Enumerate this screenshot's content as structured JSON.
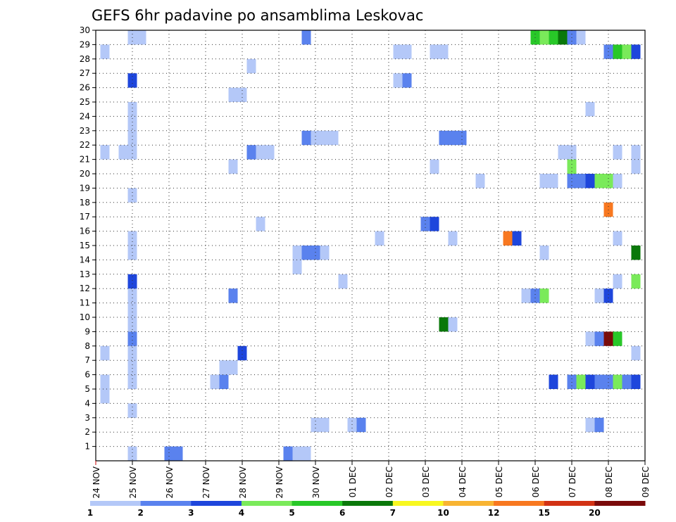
{
  "chart_data": {
    "type": "heatmap",
    "title": "GEFS 6hr padavine po ansamblima Leskovac",
    "xlabel": "",
    "ylabel": "",
    "x_tick_labels": [
      "24 NOV",
      "25 NOV",
      "26 NOV",
      "27 NOV",
      "28 NOV",
      "29 NOV",
      "30 NOV",
      "01 DEC",
      "02 DEC",
      "03 DEC",
      "04 DEC",
      "05 DEC",
      "06 DEC",
      "07 DEC",
      "08 DEC",
      "09 DEC"
    ],
    "x_range_days": [
      0,
      15
    ],
    "y_tick_labels": [
      "1",
      "2",
      "3",
      "4",
      "5",
      "6",
      "7",
      "8",
      "9",
      "10",
      "11",
      "12",
      "13",
      "14",
      "15",
      "16",
      "17",
      "18",
      "19",
      "20",
      "21",
      "22",
      "23",
      "24",
      "25",
      "26",
      "27",
      "28",
      "29",
      "30"
    ],
    "y_range": [
      0,
      30
    ],
    "grid": true,
    "colorbar": {
      "placement": "bottom",
      "labels": [
        "1",
        "2",
        "3",
        "4",
        "5",
        "6",
        "7",
        "10",
        "12",
        "15",
        "20"
      ],
      "colors": [
        "#b4c8f8",
        "#5a82ee",
        "#1e46dc",
        "#7aea5a",
        "#28c828",
        "#0a780a",
        "#f8f820",
        "#f8b432",
        "#f87820",
        "#d23214",
        "#7a0a0a"
      ]
    },
    "cells": [
      {
        "m": 1,
        "t": 4,
        "c": 1
      },
      {
        "m": 1,
        "t": 8,
        "c": 2
      },
      {
        "m": 1,
        "t": 9,
        "c": 2
      },
      {
        "m": 1,
        "t": 21,
        "c": 2
      },
      {
        "m": 1,
        "t": 22,
        "c": 1
      },
      {
        "m": 1,
        "t": 23,
        "c": 1
      },
      {
        "m": 3,
        "t": 24,
        "c": 1
      },
      {
        "m": 3,
        "t": 25,
        "c": 1
      },
      {
        "m": 3,
        "t": 28,
        "c": 1
      },
      {
        "m": 3,
        "t": 29,
        "c": 2
      },
      {
        "m": 3,
        "t": 54,
        "c": 1
      },
      {
        "m": 3,
        "t": 55,
        "c": 2
      },
      {
        "m": 4,
        "t": 4,
        "c": 1
      },
      {
        "m": 5,
        "t": 1,
        "c": 1
      },
      {
        "m": 6,
        "t": 1,
        "c": 1
      },
      {
        "m": 6,
        "t": 4,
        "c": 1
      },
      {
        "m": 6,
        "t": 13,
        "c": 1
      },
      {
        "m": 6,
        "t": 14,
        "c": 2
      },
      {
        "m": 6,
        "t": 50,
        "c": 3
      },
      {
        "m": 6,
        "t": 52,
        "c": 2
      },
      {
        "m": 6,
        "t": 53,
        "c": 4
      },
      {
        "m": 6,
        "t": 54,
        "c": 3
      },
      {
        "m": 6,
        "t": 55,
        "c": 2
      },
      {
        "m": 6,
        "t": 56,
        "c": 2
      },
      {
        "m": 6,
        "t": 57,
        "c": 4
      },
      {
        "m": 6,
        "t": 58,
        "c": 2
      },
      {
        "m": 6,
        "t": 59,
        "c": 3
      },
      {
        "m": 7,
        "t": 4,
        "c": 1
      },
      {
        "m": 7,
        "t": 14,
        "c": 1
      },
      {
        "m": 7,
        "t": 15,
        "c": 1
      },
      {
        "m": 8,
        "t": 1,
        "c": 1
      },
      {
        "m": 8,
        "t": 4,
        "c": 1
      },
      {
        "m": 8,
        "t": 16,
        "c": 3
      },
      {
        "m": 8,
        "t": 59,
        "c": 1
      },
      {
        "m": 9,
        "t": 4,
        "c": 2
      },
      {
        "m": 9,
        "t": 54,
        "c": 1
      },
      {
        "m": 9,
        "t": 55,
        "c": 2
      },
      {
        "m": 9,
        "t": 56,
        "c": 11
      },
      {
        "m": 9,
        "t": 57,
        "c": 5
      },
      {
        "m": 10,
        "t": 4,
        "c": 1
      },
      {
        "m": 10,
        "t": 38,
        "c": 6
      },
      {
        "m": 10,
        "t": 39,
        "c": 1
      },
      {
        "m": 11,
        "t": 4,
        "c": 1
      },
      {
        "m": 12,
        "t": 4,
        "c": 1
      },
      {
        "m": 12,
        "t": 15,
        "c": 2
      },
      {
        "m": 12,
        "t": 47,
        "c": 1
      },
      {
        "m": 12,
        "t": 48,
        "c": 2
      },
      {
        "m": 12,
        "t": 49,
        "c": 4
      },
      {
        "m": 12,
        "t": 55,
        "c": 1
      },
      {
        "m": 12,
        "t": 56,
        "c": 3
      },
      {
        "m": 13,
        "t": 4,
        "c": 3
      },
      {
        "m": 13,
        "t": 27,
        "c": 1
      },
      {
        "m": 13,
        "t": 57,
        "c": 1
      },
      {
        "m": 13,
        "t": 59,
        "c": 4
      },
      {
        "m": 14,
        "t": 22,
        "c": 1
      },
      {
        "m": 15,
        "t": 4,
        "c": 1
      },
      {
        "m": 15,
        "t": 22,
        "c": 1
      },
      {
        "m": 15,
        "t": 23,
        "c": 2
      },
      {
        "m": 15,
        "t": 24,
        "c": 2
      },
      {
        "m": 15,
        "t": 25,
        "c": 1
      },
      {
        "m": 15,
        "t": 49,
        "c": 1
      },
      {
        "m": 15,
        "t": 59,
        "c": 6
      },
      {
        "m": 16,
        "t": 4,
        "c": 1
      },
      {
        "m": 16,
        "t": 31,
        "c": 1
      },
      {
        "m": 16,
        "t": 39,
        "c": 1
      },
      {
        "m": 16,
        "t": 45,
        "c": 9
      },
      {
        "m": 16,
        "t": 46,
        "c": 3
      },
      {
        "m": 16,
        "t": 57,
        "c": 1
      },
      {
        "m": 17,
        "t": 18,
        "c": 1
      },
      {
        "m": 17,
        "t": 36,
        "c": 2
      },
      {
        "m": 17,
        "t": 37,
        "c": 3
      },
      {
        "m": 18,
        "t": 56,
        "c": 9
      },
      {
        "m": 19,
        "t": 4,
        "c": 1
      },
      {
        "m": 20,
        "t": 42,
        "c": 1
      },
      {
        "m": 20,
        "t": 49,
        "c": 1
      },
      {
        "m": 20,
        "t": 50,
        "c": 1
      },
      {
        "m": 20,
        "t": 52,
        "c": 2
      },
      {
        "m": 20,
        "t": 53,
        "c": 2
      },
      {
        "m": 20,
        "t": 54,
        "c": 3
      },
      {
        "m": 20,
        "t": 55,
        "c": 4
      },
      {
        "m": 20,
        "t": 56,
        "c": 4
      },
      {
        "m": 20,
        "t": 57,
        "c": 1
      },
      {
        "m": 21,
        "t": 15,
        "c": 1
      },
      {
        "m": 21,
        "t": 37,
        "c": 1
      },
      {
        "m": 21,
        "t": 52,
        "c": 4
      },
      {
        "m": 21,
        "t": 59,
        "c": 1
      },
      {
        "m": 22,
        "t": 1,
        "c": 1
      },
      {
        "m": 22,
        "t": 3,
        "c": 1
      },
      {
        "m": 22,
        "t": 4,
        "c": 1
      },
      {
        "m": 22,
        "t": 17,
        "c": 2
      },
      {
        "m": 22,
        "t": 18,
        "c": 1
      },
      {
        "m": 22,
        "t": 19,
        "c": 1
      },
      {
        "m": 22,
        "t": 51,
        "c": 1
      },
      {
        "m": 22,
        "t": 52,
        "c": 1
      },
      {
        "m": 22,
        "t": 57,
        "c": 1
      },
      {
        "m": 22,
        "t": 59,
        "c": 1
      },
      {
        "m": 23,
        "t": 4,
        "c": 1
      },
      {
        "m": 23,
        "t": 23,
        "c": 2
      },
      {
        "m": 23,
        "t": 24,
        "c": 1
      },
      {
        "m": 23,
        "t": 25,
        "c": 1
      },
      {
        "m": 23,
        "t": 26,
        "c": 1
      },
      {
        "m": 23,
        "t": 38,
        "c": 2
      },
      {
        "m": 23,
        "t": 39,
        "c": 2
      },
      {
        "m": 23,
        "t": 40,
        "c": 2
      },
      {
        "m": 24,
        "t": 4,
        "c": 1
      },
      {
        "m": 25,
        "t": 4,
        "c": 1
      },
      {
        "m": 25,
        "t": 54,
        "c": 1
      },
      {
        "m": 26,
        "t": 15,
        "c": 1
      },
      {
        "m": 26,
        "t": 16,
        "c": 1
      },
      {
        "m": 27,
        "t": 4,
        "c": 3
      },
      {
        "m": 27,
        "t": 33,
        "c": 1
      },
      {
        "m": 27,
        "t": 34,
        "c": 2
      },
      {
        "m": 28,
        "t": 17,
        "c": 1
      },
      {
        "m": 29,
        "t": 1,
        "c": 1
      },
      {
        "m": 29,
        "t": 33,
        "c": 1
      },
      {
        "m": 29,
        "t": 34,
        "c": 1
      },
      {
        "m": 29,
        "t": 37,
        "c": 1
      },
      {
        "m": 29,
        "t": 38,
        "c": 1
      },
      {
        "m": 29,
        "t": 56,
        "c": 2
      },
      {
        "m": 29,
        "t": 57,
        "c": 5
      },
      {
        "m": 29,
        "t": 58,
        "c": 4
      },
      {
        "m": 29,
        "t": 59,
        "c": 3
      },
      {
        "m": 30,
        "t": 4,
        "c": 1
      },
      {
        "m": 30,
        "t": 5,
        "c": 1
      },
      {
        "m": 30,
        "t": 23,
        "c": 2
      },
      {
        "m": 30,
        "t": 48,
        "c": 5
      },
      {
        "m": 30,
        "t": 49,
        "c": 4
      },
      {
        "m": 30,
        "t": 50,
        "c": 5
      },
      {
        "m": 30,
        "t": 51,
        "c": 6
      },
      {
        "m": 30,
        "t": 52,
        "c": 2
      },
      {
        "m": 30,
        "t": 53,
        "c": 1
      }
    ]
  }
}
